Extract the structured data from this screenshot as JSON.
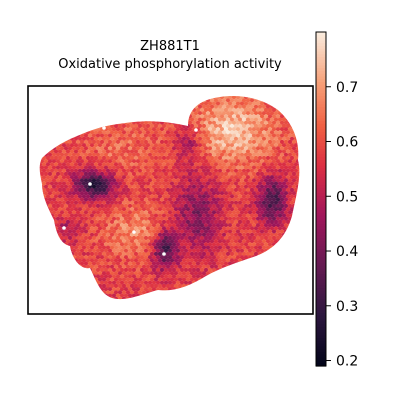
{
  "chart_data": {
    "type": "heatmap",
    "title": "ZH881T1",
    "subtitle": "Oxidative phosphorylation activity",
    "xlabel": "",
    "ylabel": "",
    "grid": false,
    "colorbar": {
      "colormap": "rocket",
      "range": [
        0.19,
        0.8
      ],
      "ticks": [
        0.2,
        0.3,
        0.4,
        0.5,
        0.6,
        0.7
      ],
      "tick_labels": [
        "0.2",
        "0.3",
        "0.4",
        "0.5",
        "0.6",
        "0.7"
      ]
    },
    "value_summary": {
      "background_level": 0.58,
      "hot_regions": [
        "upper-right lobe",
        "lower-center"
      ],
      "cold_regions": [
        "left-center",
        "right edge",
        "lower-center spot"
      ]
    }
  }
}
